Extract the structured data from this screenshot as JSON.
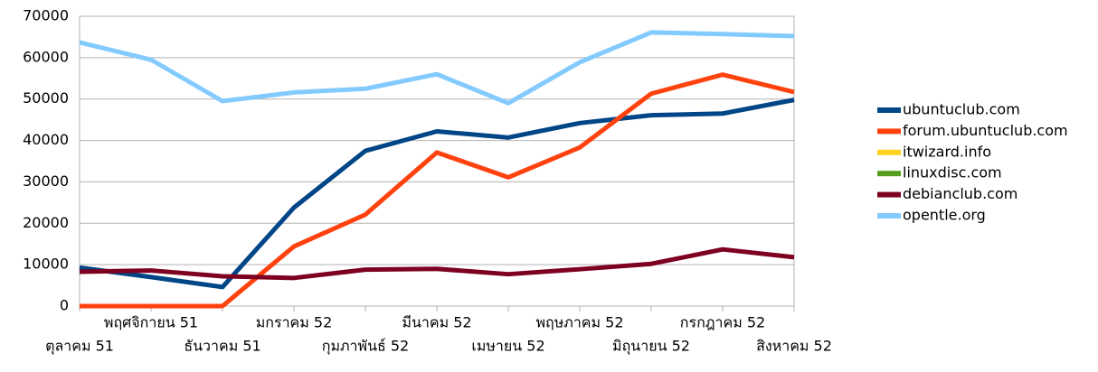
{
  "chart_data": {
    "type": "line",
    "categories": [
      "ตุลาคม 51",
      "พฤศจิกายน 51",
      "ธันวาคม 51",
      "มกราคม 52",
      "กุมภาพันธ์ 52",
      "มีนาคม 52",
      "เมษายน 52",
      "พฤษภาคม 52",
      "มิถุนายน 52",
      "กรกฎาคม 52",
      "สิงหาคม 52"
    ],
    "series": [
      {
        "name": "ubuntuclub.com",
        "color": "#004586",
        "values": [
          9300,
          7000,
          4600,
          23800,
          37500,
          42200,
          40700,
          44200,
          46100,
          46500,
          49800
        ]
      },
      {
        "name": "forum.ubuntuclub.com",
        "color": "#ff420e",
        "values": [
          0,
          0,
          0,
          14400,
          22100,
          37100,
          31100,
          38300,
          51300,
          55900,
          51700
        ]
      },
      {
        "name": "itwizard.info",
        "color": "#ffd320",
        "values": [
          null,
          null,
          null,
          null,
          null,
          null,
          null,
          null,
          null,
          null,
          null
        ]
      },
      {
        "name": "linuxdisc.com",
        "color": "#579d1c",
        "values": [
          null,
          null,
          null,
          null,
          null,
          null,
          null,
          null,
          null,
          null,
          null
        ]
      },
      {
        "name": "debianclub.com",
        "color": "#7e0021",
        "values": [
          8300,
          8600,
          7200,
          6800,
          8800,
          9000,
          7700,
          8900,
          10200,
          13700,
          11800
        ]
      },
      {
        "name": "opentle.org",
        "color": "#83caff",
        "values": [
          63700,
          59500,
          49500,
          51600,
          52500,
          56000,
          49000,
          58900,
          66100,
          65700,
          65200
        ]
      }
    ],
    "ylim": [
      0,
      70000
    ],
    "yticks": [
      0,
      10000,
      20000,
      30000,
      40000,
      50000,
      60000,
      70000
    ],
    "grid": true,
    "legend": "right"
  }
}
